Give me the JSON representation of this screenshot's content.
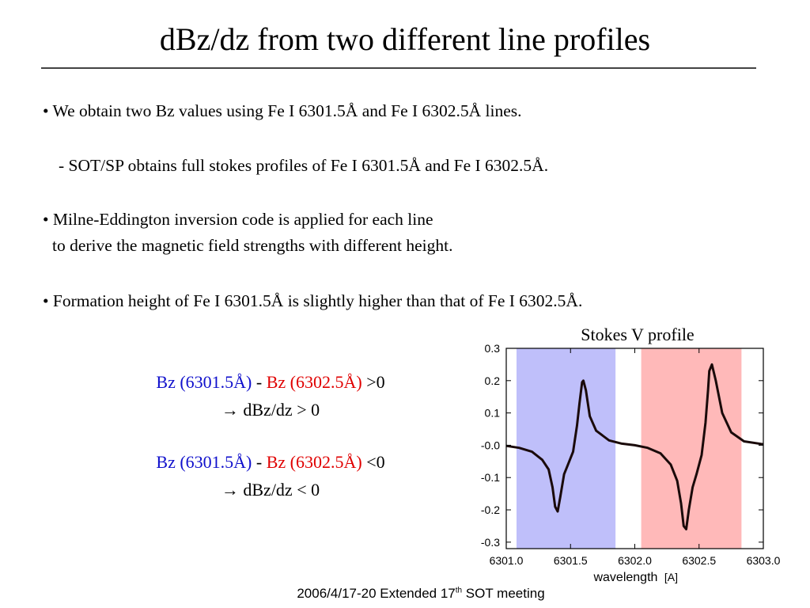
{
  "slide": {
    "title": "dBz/dz from two different line profiles",
    "bullets": [
      "• We obtain two Bz values using Fe I 6301.5Å and Fe I 6302.5Å lines.",
      "- SOT/SP obtains full stokes profiles of Fe I 6301.5Å and Fe I 6302.5Å.",
      "• Milne-Eddington inversion code is applied for each line",
      "to derive the magnetic field strengths with different height.",
      "• Formation height of Fe I 6301.5Å is slightly higher than that of Fe I 6302.5Å."
    ],
    "cases": [
      {
        "bz_a": "Bz (6301.5Å)",
        "minus": " - ",
        "bz_b": "Bz (6302.5Å)",
        "relation": " >0",
        "arrow": "→",
        "result": " dBz/dz > 0"
      },
      {
        "bz_a": "Bz (6301.5Å)",
        "minus": " - ",
        "bz_b": "Bz (6302.5Å)",
        "relation": " <0",
        "arrow": "→",
        "result": " dBz/dz < 0"
      }
    ],
    "footer": {
      "text": "2006/4/17-20 Extended 17",
      "sup": "th",
      "rest": " SOT meeting"
    }
  },
  "chart_data": {
    "type": "line",
    "title": "Stokes V profile",
    "xlabel": "wavelength",
    "xlabel_unit": "[A]",
    "ylabel": "",
    "xlim": [
      6301.0,
      6303.0
    ],
    "ylim": [
      -0.32,
      0.3
    ],
    "x_ticks": [
      6301.0,
      6301.5,
      6302.0,
      6302.5,
      6303.0
    ],
    "x_tick_labels": [
      "6301.0",
      "6301.5",
      "6302.0",
      "6302.5",
      "6303.0"
    ],
    "y_ticks": [
      0.3,
      0.2,
      0.1,
      0.0,
      -0.1,
      -0.2,
      -0.3
    ],
    "y_tick_labels": [
      "0.3",
      "0.2",
      "0.1",
      "-0.0",
      "-0.1",
      "-0.2",
      "-0.3"
    ],
    "bands": [
      {
        "x0": 6301.08,
        "x1": 6301.85,
        "color": "#bfbffa"
      },
      {
        "x0": 6302.05,
        "x1": 6302.83,
        "color": "#ffb9b9"
      }
    ],
    "series": [
      {
        "color": "#1a0a0a",
        "x": [
          6301.0,
          6301.1,
          6301.2,
          6301.28,
          6301.33,
          6301.36,
          6301.38,
          6301.4,
          6301.42,
          6301.45,
          6301.48,
          6301.52,
          6301.55,
          6301.57,
          6301.59,
          6301.6,
          6301.62,
          6301.65,
          6301.7,
          6301.8,
          6301.9,
          6302.0,
          6302.1,
          6302.2,
          6302.28,
          6302.33,
          6302.36,
          6302.38,
          6302.4,
          6302.42,
          6302.45,
          6302.48,
          6302.52,
          6302.55,
          6302.57,
          6302.58,
          6302.6,
          6302.63,
          6302.68,
          6302.75,
          6302.85,
          6303.0
        ],
        "y": [
          -0.002,
          -0.008,
          -0.02,
          -0.045,
          -0.075,
          -0.13,
          -0.19,
          -0.205,
          -0.16,
          -0.09,
          -0.06,
          -0.02,
          0.06,
          0.13,
          0.195,
          0.2,
          0.17,
          0.09,
          0.045,
          0.015,
          0.005,
          0.0,
          -0.008,
          -0.025,
          -0.06,
          -0.11,
          -0.18,
          -0.25,
          -0.26,
          -0.2,
          -0.13,
          -0.09,
          -0.03,
          0.07,
          0.17,
          0.23,
          0.25,
          0.2,
          0.1,
          0.04,
          0.012,
          0.003
        ]
      }
    ]
  }
}
